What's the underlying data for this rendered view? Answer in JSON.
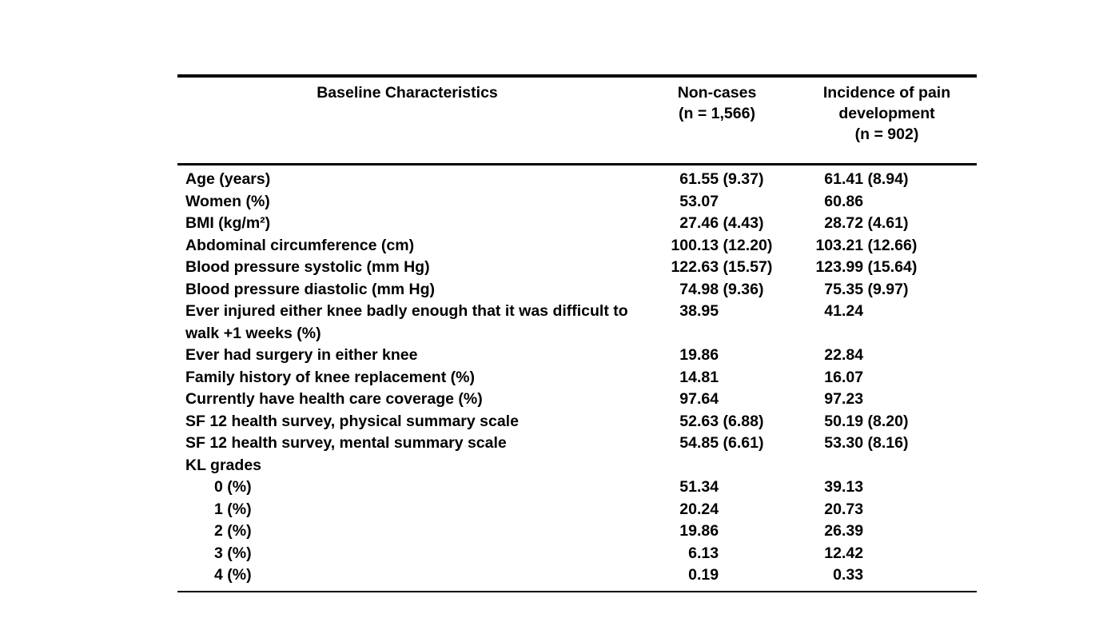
{
  "page": {
    "background_color": "#ffffff",
    "text_color": "#000000"
  },
  "table": {
    "header": {
      "characteristics": "Baseline Characteristics",
      "noncases_lines": [
        "Non-cases",
        "(n = 1,566)"
      ],
      "incidence_lines": [
        "Incidence of pain",
        "development",
        "(n = 902)"
      ]
    },
    "rows": [
      {
        "label": "Age (years)",
        "indent": false,
        "noncases": "61.55 (9.37)",
        "incidence": "61.41 (8.94)"
      },
      {
        "label": "Women (%)",
        "indent": false,
        "noncases": "53.07",
        "incidence": "60.86"
      },
      {
        "label": "BMI (kg/m²)",
        "indent": false,
        "noncases": "27.46 (4.43)",
        "incidence": "28.72 (4.61)"
      },
      {
        "label": "Abdominal circumference (cm)",
        "indent": false,
        "noncases": "100.13 (12.20)",
        "incidence": "103.21 (12.66)"
      },
      {
        "label": "Blood pressure systolic (mm Hg)",
        "indent": false,
        "noncases": "122.63 (15.57)",
        "incidence": "123.99 (15.64)"
      },
      {
        "label": "Blood pressure diastolic (mm Hg)",
        "indent": false,
        "noncases": "74.98 (9.36)",
        "incidence": "75.35 (9.97)"
      },
      {
        "label": "Ever injured either knee badly enough that it was difficult to walk +1 weeks (%)",
        "indent": false,
        "noncases": "38.95",
        "incidence": "41.24"
      },
      {
        "label": "Ever had surgery in either knee",
        "indent": false,
        "noncases": "19.86",
        "incidence": "22.84"
      },
      {
        "label": "Family history of knee replacement (%)",
        "indent": false,
        "noncases": "14.81",
        "incidence": "16.07"
      },
      {
        "label": "Currently have health care coverage (%)",
        "indent": false,
        "noncases": "97.64",
        "incidence": "97.23"
      },
      {
        "label": "SF 12 health survey, physical summary scale",
        "indent": false,
        "noncases": "52.63 (6.88)",
        "incidence": "50.19 (8.20)"
      },
      {
        "label": "SF 12 health survey, mental summary scale",
        "indent": false,
        "noncases": "54.85 (6.61)",
        "incidence": "53.30 (8.16)"
      },
      {
        "label": "KL grades",
        "indent": false,
        "noncases": "",
        "incidence": ""
      },
      {
        "label": "0 (%)",
        "indent": true,
        "noncases": "51.34",
        "incidence": "39.13"
      },
      {
        "label": "1 (%)",
        "indent": true,
        "noncases": "20.24",
        "incidence": "20.73"
      },
      {
        "label": "2 (%)",
        "indent": true,
        "noncases": "19.86",
        "incidence": "26.39"
      },
      {
        "label": "3 (%)",
        "indent": true,
        "noncases": "6.13",
        "incidence": "12.42"
      },
      {
        "label": "4 (%)",
        "indent": true,
        "noncases": "0.19",
        "incidence": "0.33"
      }
    ]
  }
}
